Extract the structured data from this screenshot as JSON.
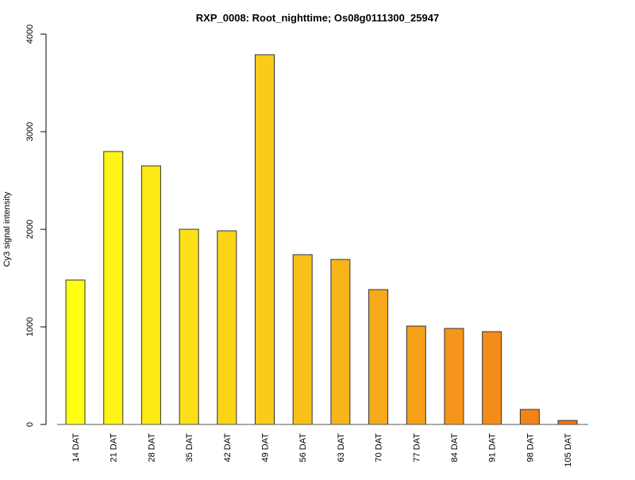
{
  "chart_data": {
    "type": "bar",
    "title": "RXP_0008: Root_nighttime; Os08g0111300_25947",
    "xlabel": "",
    "ylabel": "Cy3 signal intensity",
    "ylim": [
      0,
      4000
    ],
    "yticks": [
      "0",
      "1000",
      "2000",
      "3000",
      "4000"
    ],
    "categories": [
      "14 DAT",
      "21 DAT",
      "28 DAT",
      "35 DAT",
      "42 DAT",
      "49 DAT",
      "56 DAT",
      "63 DAT",
      "70 DAT",
      "77 DAT",
      "84 DAT",
      "91 DAT",
      "98 DAT",
      "105 DAT"
    ],
    "values": [
      1480,
      2797,
      2650,
      2000,
      1984,
      3789,
      1740,
      1691,
      1382,
      1008,
      984,
      951,
      154,
      41
    ],
    "colors": [
      "#FFFF14",
      "#FEF516",
      "#FDEA17",
      "#FCDF18",
      "#FBD418",
      "#FACB19",
      "#F9C01A",
      "#F8B51A",
      "#F7AA1A",
      "#F6A01A",
      "#F5961A",
      "#F48C19",
      "#F38218",
      "#F07816"
    ],
    "grid": false
  }
}
